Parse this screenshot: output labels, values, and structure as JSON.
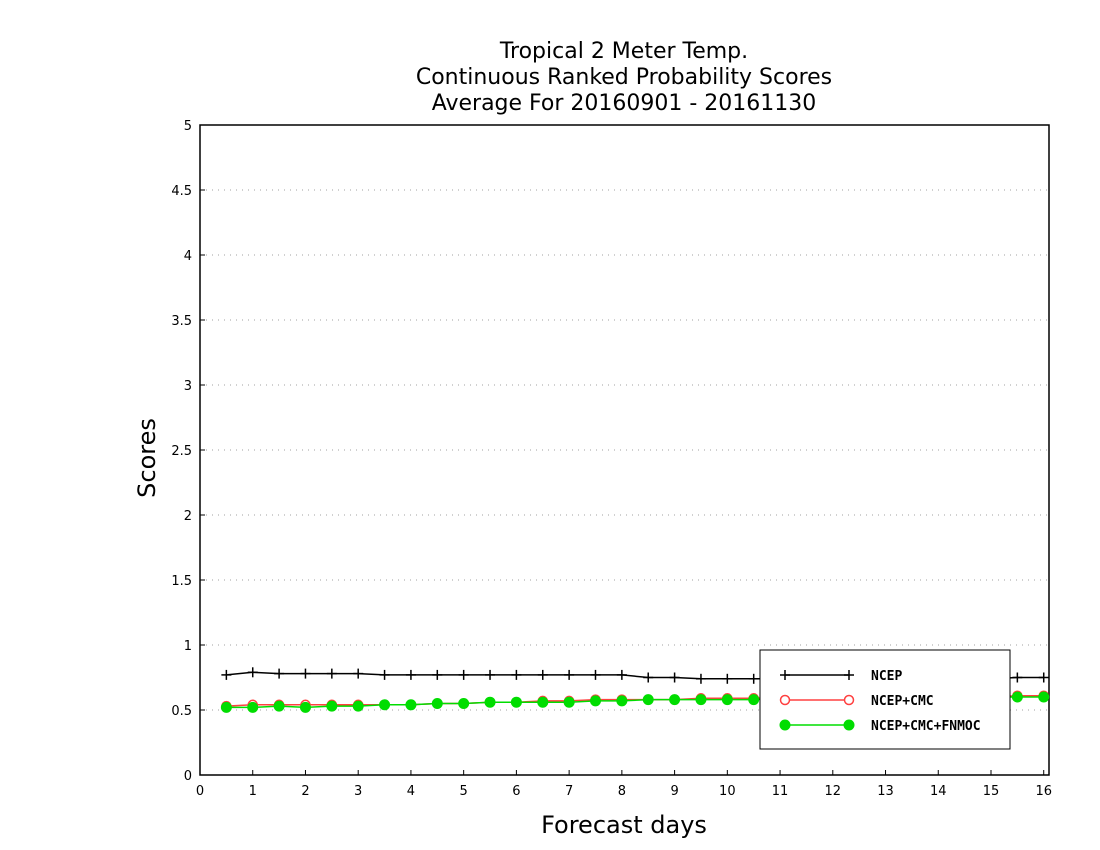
{
  "chart_data": {
    "type": "line",
    "title_lines": [
      "Tropical 2 Meter Temp.",
      "Continuous Ranked Probability Scores",
      "Average For 20160901 - 20161130"
    ],
    "xlabel": "Forecast days",
    "ylabel": "Scores",
    "xlim": [
      0,
      16.1
    ],
    "ylim": [
      0,
      5
    ],
    "x_ticks": [
      0,
      1,
      2,
      3,
      4,
      5,
      6,
      7,
      8,
      9,
      10,
      11,
      12,
      13,
      14,
      15,
      16
    ],
    "x_tick_labels": [
      "0",
      "1",
      "2",
      "3",
      "4",
      "5",
      "6",
      "7",
      "8",
      "9",
      "10",
      "11",
      "12",
      "13",
      "14",
      "15",
      "16"
    ],
    "y_ticks": [
      0,
      0.5,
      1,
      1.5,
      2,
      2.5,
      3,
      3.5,
      4,
      4.5,
      5
    ],
    "y_tick_labels": [
      "0",
      "0.5",
      "1",
      "1.5",
      "2",
      "2.5",
      "3",
      "3.5",
      "4",
      "4.5",
      "5"
    ],
    "grid": "dotted horizontal",
    "legend_position": "bottom-right",
    "x": [
      0.5,
      1,
      1.5,
      2,
      2.5,
      3,
      3.5,
      4,
      4.5,
      5,
      5.5,
      6,
      6.5,
      7,
      7.5,
      8,
      8.5,
      9,
      9.5,
      10,
      10.5,
      11,
      11.5,
      12,
      12.5,
      13,
      13.5,
      14,
      14.5,
      15,
      15.5,
      16
    ],
    "series": [
      {
        "name": "NCEP",
        "color": "#000000",
        "marker": "plus",
        "values": [
          0.77,
          0.79,
          0.78,
          0.78,
          0.78,
          0.78,
          0.77,
          0.77,
          0.77,
          0.77,
          0.77,
          0.77,
          0.77,
          0.77,
          0.77,
          0.77,
          0.75,
          0.75,
          0.74,
          0.74,
          0.74,
          0.74,
          0.74,
          0.74,
          0.74,
          0.74,
          0.74,
          0.74,
          0.74,
          0.74,
          0.75,
          0.75
        ]
      },
      {
        "name": "NCEP+CMC",
        "color": "#ff4040",
        "marker": "open-circle",
        "values": [
          0.53,
          0.54,
          0.54,
          0.54,
          0.54,
          0.54,
          0.54,
          0.54,
          0.55,
          0.55,
          0.56,
          0.56,
          0.57,
          0.57,
          0.58,
          0.58,
          0.58,
          0.58,
          0.59,
          0.59,
          0.59,
          0.6,
          0.6,
          0.6,
          0.6,
          0.6,
          0.6,
          0.6,
          0.6,
          0.6,
          0.61,
          0.61
        ]
      },
      {
        "name": "NCEP+CMC+FNMOC",
        "color": "#00dd00",
        "marker": "filled-circle",
        "values": [
          0.52,
          0.52,
          0.53,
          0.52,
          0.53,
          0.53,
          0.54,
          0.54,
          0.55,
          0.55,
          0.56,
          0.56,
          0.56,
          0.56,
          0.57,
          0.57,
          0.58,
          0.58,
          0.58,
          0.58,
          0.58,
          0.59,
          0.59,
          0.59,
          0.59,
          0.59,
          0.6,
          0.6,
          0.6,
          0.6,
          0.6,
          0.6
        ]
      }
    ]
  }
}
